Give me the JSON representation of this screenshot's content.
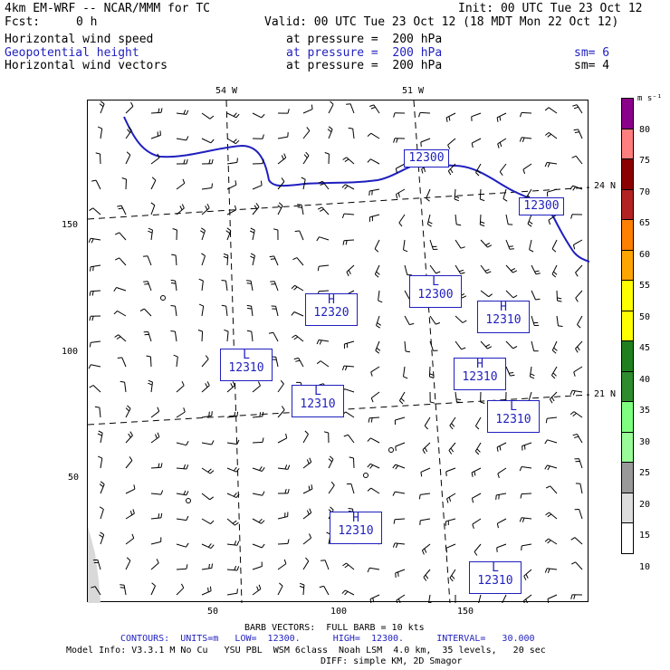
{
  "header": {
    "model": "4km EM-WRF -- NCAR/MMM for TC",
    "init": "Init: 00 UTC Tue 23 Oct 12",
    "fcst_label": "Fcst:",
    "fcst_value": "0 h",
    "valid": "Valid: 00 UTC Tue 23 Oct 12 (18 MDT Mon 22 Oct 12)",
    "fields": [
      {
        "name": "Horizontal wind speed",
        "level": "at pressure =  200 hPa",
        "sm": "",
        "color": "#000000"
      },
      {
        "name": "Geopotential height",
        "level": "at pressure =  200 hPa",
        "sm": "sm= 6",
        "color": "#1f1fbf"
      },
      {
        "name": "Horizontal wind vectors",
        "level": "at pressure =  200 hPa",
        "sm": "sm= 4",
        "color": "#000000"
      }
    ]
  },
  "map": {
    "lon_labels": [
      "54 W",
      "51 W"
    ],
    "lat_labels": [
      "24 N",
      "21 N"
    ],
    "y_ticks": [
      "150",
      "100",
      "50"
    ],
    "x_ticks": [
      "50",
      "100",
      "150"
    ],
    "contour_value": "12300",
    "systems": [
      {
        "letter": "H",
        "value": "12320"
      },
      {
        "letter": "L",
        "value": "12300"
      },
      {
        "letter": "H",
        "value": "12310"
      },
      {
        "letter": "L",
        "value": "12310"
      },
      {
        "letter": "H",
        "value": "12310"
      },
      {
        "letter": "L",
        "value": "12310"
      },
      {
        "letter": "L",
        "value": "12310"
      },
      {
        "letter": "H",
        "value": "12310"
      },
      {
        "letter": "L",
        "value": "12310"
      }
    ],
    "contour_labels": [
      "12300",
      "12300"
    ]
  },
  "colorbar": {
    "unit": "m s⁻¹",
    "levels": [
      "80",
      "75",
      "70",
      "65",
      "60",
      "55",
      "50",
      "45",
      "40",
      "35",
      "30",
      "25",
      "20",
      "15",
      "10"
    ],
    "colors": [
      "#8b008b",
      "#ff7f7f",
      "#8b0000",
      "#b22222",
      "#ff7f00",
      "#ffa500",
      "#ffff00",
      "#ffff00",
      "#1f7f1f",
      "#2e8b2e",
      "#7fff7f",
      "#98fb98",
      "#999999",
      "#dddddd",
      "#ffffff"
    ]
  },
  "footer": {
    "barb": "BARB VECTORS:  FULL BARB = 10 kts",
    "contours": "CONTOURS:  UNITS=m   LOW=  12300.      HIGH=  12300.      INTERVAL=   30.000",
    "model_info": "Model Info: V3.3.1 M No Cu   YSU PBL  WSM 6class  Noah LSM  4.0 km,  35 levels,   20 sec",
    "diff": "DIFF: simple KM, 2D Smagor"
  }
}
